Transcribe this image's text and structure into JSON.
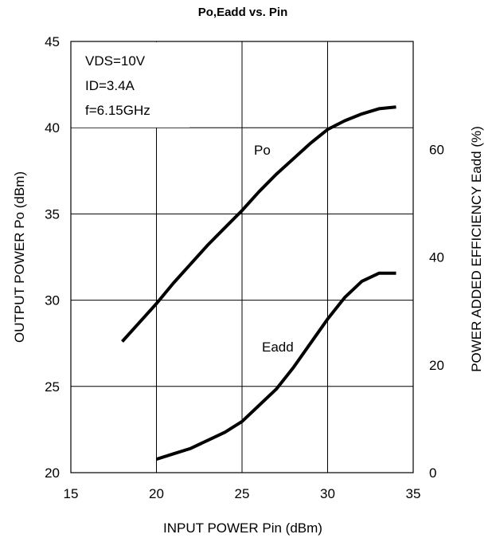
{
  "chart_data": {
    "type": "line",
    "title": "Po,Eadd vs. Pin",
    "xlabel": "INPUT POWER Pin (dBm)",
    "ylabel": "OUTPUT POWER Po (dBm)",
    "y2label": "POWER ADDED EFFICIENCY Eadd (%)",
    "xlim": [
      15,
      35
    ],
    "ylim": [
      20,
      45
    ],
    "y2lim": [
      0,
      80
    ],
    "xticks": [
      15,
      20,
      25,
      30,
      35
    ],
    "yticks": [
      20,
      25,
      30,
      35,
      40,
      45
    ],
    "y2ticks": [
      0,
      20,
      40,
      60
    ],
    "grid": true,
    "conditions": [
      "VDS=10V",
      "ID=3.4A",
      "f=6.15GHz"
    ],
    "series": [
      {
        "name": "Po",
        "axis": "left",
        "x": [
          18,
          19,
          20,
          21,
          22,
          23,
          24,
          25,
          26,
          27,
          28,
          29,
          30,
          31,
          32,
          33,
          34
        ],
        "y": [
          27.6,
          28.7,
          29.8,
          31.0,
          32.1,
          33.2,
          34.2,
          35.2,
          36.3,
          37.3,
          38.2,
          39.1,
          39.9,
          40.4,
          40.8,
          41.1,
          41.2
        ]
      },
      {
        "name": "Eadd",
        "axis": "right",
        "x": [
          20,
          21,
          22,
          23,
          24,
          25,
          26,
          27,
          28,
          29,
          30,
          31,
          32,
          33,
          34
        ],
        "y": [
          2.5,
          3.5,
          4.5,
          6.0,
          7.5,
          9.5,
          12.5,
          15.5,
          19.5,
          24.0,
          28.5,
          32.5,
          35.5,
          37.0,
          37.0
        ]
      }
    ]
  }
}
